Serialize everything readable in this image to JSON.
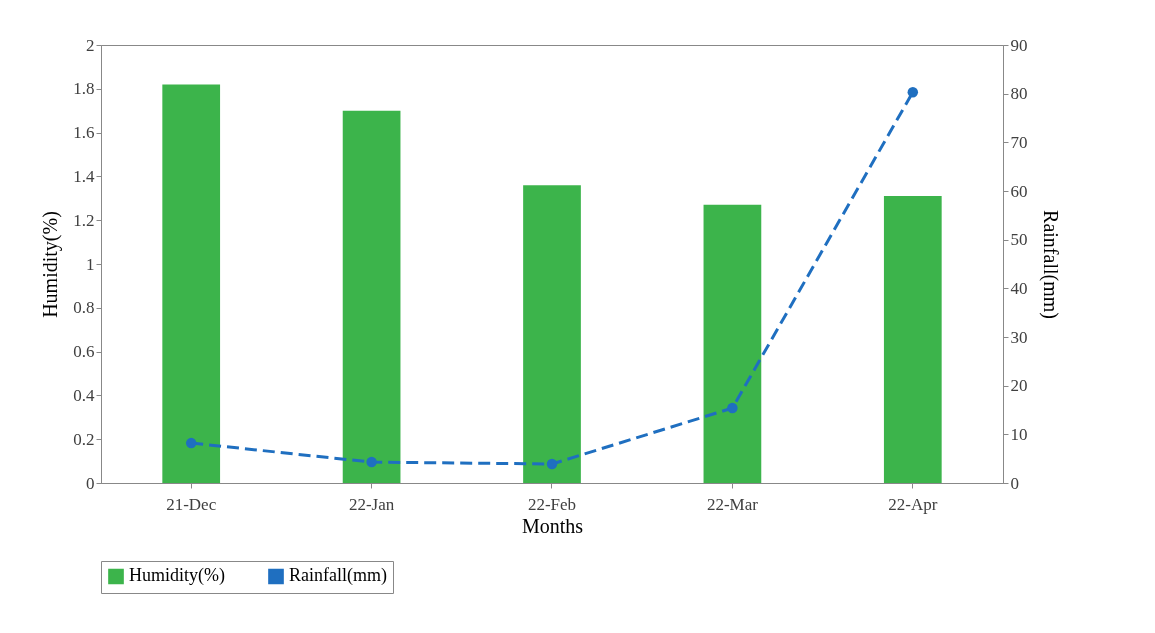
{
  "chart_data": {
    "type": "bar",
    "xlabel": "Months",
    "ylabel": "Humidity(%)",
    "y2label": "Rainfall(mm)",
    "categories": [
      "21-Dec",
      "22-Jan",
      "22-Feb",
      "22-Mar",
      "22-Apr"
    ],
    "series": [
      {
        "name": "Humidity(%)",
        "color": "#3cb44b",
        "values": [
          1.82,
          1.7,
          1.36,
          1.27,
          1.31
        ]
      },
      {
        "name": "Rainfall(mm)",
        "type": "line",
        "axis": "y2",
        "color": "#1f6fc0",
        "line_style": "dashed",
        "marker": "circle",
        "values": [
          8.2,
          4.3,
          3.9,
          15.4,
          80.3
        ]
      }
    ],
    "ylim": [
      0,
      2
    ],
    "yticks": [
      0,
      0.2,
      0.4,
      0.6,
      0.8,
      1,
      1.2,
      1.4,
      1.6,
      1.8,
      2
    ],
    "y2lim": [
      0,
      90
    ],
    "y2ticks": [
      0,
      10,
      20,
      30,
      40,
      50,
      60,
      70,
      80,
      90
    ],
    "grid": false,
    "legend": "bottom"
  }
}
